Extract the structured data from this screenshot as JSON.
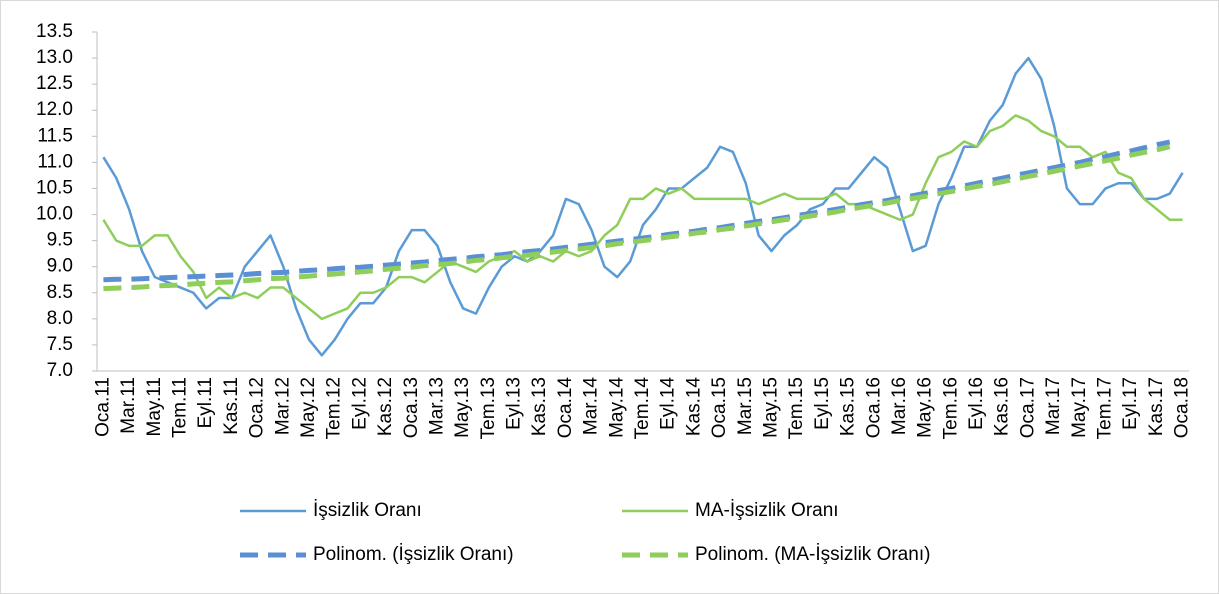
{
  "chart_data": {
    "type": "line",
    "categories": [
      "Oca.11",
      null,
      "Mar.11",
      null,
      "May.11",
      null,
      "Tem.11",
      null,
      "Eyl.11",
      null,
      "Kas.11",
      null,
      "Oca.12",
      null,
      "Mar.12",
      null,
      "May.12",
      null,
      "Tem.12",
      null,
      "Eyl.12",
      null,
      "Kas.12",
      null,
      "Oca.13",
      null,
      "Mar.13",
      null,
      "May.13",
      null,
      "Tem.13",
      null,
      "Eyl.13",
      null,
      "Kas.13",
      null,
      "Oca.14",
      null,
      "Mar.14",
      null,
      "May.14",
      null,
      "Tem.14",
      null,
      "Eyl.14",
      null,
      "Kas.14",
      null,
      "Oca.15",
      null,
      "Mar.15",
      null,
      "May.15",
      null,
      "Tem.15",
      null,
      "Eyl.15",
      null,
      "Kas.15",
      null,
      "Oca.16",
      null,
      "Mar.16",
      null,
      "May.16",
      null,
      "Tem.16",
      null,
      "Eyl.16",
      null,
      "Kas.16",
      null,
      "Oca.17",
      null,
      "Mar.17",
      null,
      "May.17",
      null,
      "Tem.17",
      null,
      "Eyl.17",
      null,
      "Kas.17",
      null,
      "Oca.18"
    ],
    "series": [
      {
        "name": "İşsizlik Oranı",
        "color": "#5b9bd5",
        "dashed": false,
        "values": [
          11.1,
          10.7,
          10.1,
          9.3,
          8.8,
          8.7,
          8.6,
          8.5,
          8.2,
          8.4,
          8.4,
          9.0,
          9.3,
          9.6,
          9.0,
          8.2,
          7.6,
          7.3,
          7.6,
          8.0,
          8.3,
          8.3,
          8.6,
          9.3,
          9.7,
          9.7,
          9.4,
          8.7,
          8.2,
          8.1,
          8.6,
          9.0,
          9.2,
          9.1,
          9.3,
          9.6,
          10.3,
          10.2,
          9.7,
          9.0,
          8.8,
          9.1,
          9.8,
          10.1,
          10.5,
          10.5,
          10.7,
          10.9,
          11.3,
          11.2,
          10.6,
          9.6,
          9.3,
          9.6,
          9.8,
          10.1,
          10.2,
          10.5,
          10.5,
          10.8,
          11.1,
          10.9,
          10.1,
          9.3,
          9.4,
          10.2,
          10.7,
          11.3,
          11.3,
          11.8,
          12.1,
          12.7,
          13.0,
          12.6,
          11.7,
          10.5,
          10.2,
          10.2,
          10.5,
          10.6,
          10.6,
          10.3,
          10.3,
          10.4,
          10.8
        ]
      },
      {
        "name": "MA-İşsizlik Oranı",
        "color": "#8fce5a",
        "dashed": false,
        "values": [
          9.9,
          9.5,
          9.4,
          9.4,
          9.6,
          9.6,
          9.2,
          8.9,
          8.4,
          8.6,
          8.4,
          8.5,
          8.4,
          8.6,
          8.6,
          8.4,
          8.2,
          8.0,
          8.1,
          8.2,
          8.5,
          8.5,
          8.6,
          8.8,
          8.8,
          8.7,
          8.9,
          9.1,
          9.0,
          8.9,
          9.1,
          9.2,
          9.3,
          9.1,
          9.2,
          9.1,
          9.3,
          9.2,
          9.3,
          9.6,
          9.8,
          10.3,
          10.3,
          10.5,
          10.4,
          10.5,
          10.3,
          10.3,
          10.3,
          10.3,
          10.3,
          10.2,
          10.3,
          10.4,
          10.3,
          10.3,
          10.3,
          10.4,
          10.2,
          10.2,
          10.1,
          10.0,
          9.9,
          10.0,
          10.6,
          11.1,
          11.2,
          11.4,
          11.3,
          11.6,
          11.7,
          11.9,
          11.8,
          11.6,
          11.5,
          11.3,
          11.3,
          11.1,
          11.2,
          10.8,
          10.7,
          10.3,
          10.1,
          9.9,
          9.9
        ]
      },
      {
        "name": "Polinom. (İşsizlik Oranı)",
        "color": "#5b8fd5",
        "dashed": true,
        "values": [
          8.75,
          8.76,
          8.76,
          8.77,
          8.78,
          8.79,
          8.8,
          8.81,
          8.82,
          8.83,
          8.84,
          8.85,
          8.87,
          8.88,
          8.89,
          8.91,
          8.93,
          8.94,
          8.96,
          8.98,
          8.99,
          9.01,
          9.03,
          9.05,
          9.07,
          9.09,
          9.12,
          9.14,
          9.16,
          9.19,
          9.21,
          9.23,
          9.26,
          9.29,
          9.31,
          9.34,
          9.37,
          9.4,
          9.43,
          9.46,
          9.49,
          9.52,
          9.55,
          9.58,
          9.62,
          9.65,
          9.68,
          9.72,
          9.75,
          9.79,
          9.83,
          9.87,
          9.9,
          9.94,
          9.98,
          10.02,
          10.06,
          10.1,
          10.14,
          10.19,
          10.23,
          10.27,
          10.32,
          10.36,
          10.41,
          10.46,
          10.5,
          10.55,
          10.6,
          10.65,
          10.7,
          10.75,
          10.8,
          10.85,
          10.9,
          10.95,
          11.0,
          11.06,
          11.11,
          11.17,
          11.22,
          11.28,
          11.34,
          11.39,
          null
        ]
      },
      {
        "name": "Polinom. (MA-İşsizlik Oranı)",
        "color": "#8fce5a",
        "dashed": true,
        "values": [
          8.58,
          8.59,
          8.6,
          8.61,
          8.63,
          8.64,
          8.65,
          8.67,
          8.68,
          8.7,
          8.71,
          8.73,
          8.75,
          8.77,
          8.78,
          8.8,
          8.82,
          8.84,
          8.86,
          8.88,
          8.9,
          8.92,
          8.95,
          8.97,
          8.99,
          9.02,
          9.04,
          9.06,
          9.09,
          9.12,
          9.14,
          9.17,
          9.2,
          9.22,
          9.25,
          9.28,
          9.31,
          9.34,
          9.37,
          9.4,
          9.44,
          9.47,
          9.5,
          9.53,
          9.57,
          9.6,
          9.64,
          9.67,
          9.71,
          9.74,
          9.78,
          9.82,
          9.86,
          9.9,
          9.93,
          9.97,
          10.01,
          10.05,
          10.1,
          10.14,
          10.18,
          10.22,
          10.27,
          10.31,
          10.35,
          10.4,
          10.44,
          10.49,
          10.54,
          10.58,
          10.63,
          10.68,
          10.73,
          10.78,
          10.83,
          10.88,
          10.93,
          10.98,
          11.03,
          11.08,
          11.14,
          11.19,
          11.24,
          11.3,
          null
        ]
      }
    ],
    "ylim": [
      7.0,
      13.5
    ],
    "yticks": [
      {
        "value": 7,
        "label": "7.0"
      },
      7.5,
      {
        "value": 8,
        "label": "8.0"
      },
      8.5,
      {
        "value": 9,
        "label": "9.0"
      },
      9.5,
      {
        "value": 10,
        "label": "10.0"
      },
      10.5,
      {
        "value": 11,
        "label": "11.0"
      },
      11.5,
      {
        "value": 12,
        "label": "12.0"
      },
      12.5,
      {
        "value": 13,
        "label": "13.0"
      },
      13.5
    ],
    "grid": false
  }
}
